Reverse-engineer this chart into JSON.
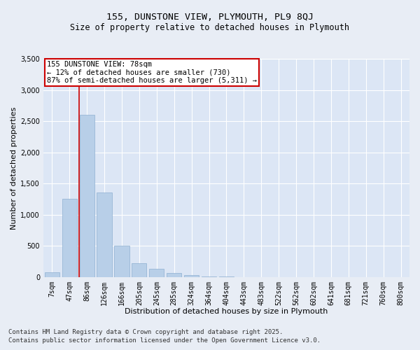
{
  "title_line1": "155, DUNSTONE VIEW, PLYMOUTH, PL9 8QJ",
  "title_line2": "Size of property relative to detached houses in Plymouth",
  "xlabel": "Distribution of detached houses by size in Plymouth",
  "ylabel": "Number of detached properties",
  "categories": [
    "7sqm",
    "47sqm",
    "86sqm",
    "126sqm",
    "166sqm",
    "205sqm",
    "245sqm",
    "285sqm",
    "324sqm",
    "364sqm",
    "404sqm",
    "443sqm",
    "483sqm",
    "522sqm",
    "562sqm",
    "602sqm",
    "641sqm",
    "681sqm",
    "721sqm",
    "760sqm",
    "800sqm"
  ],
  "values": [
    75,
    1250,
    2600,
    1350,
    500,
    220,
    130,
    60,
    25,
    8,
    3,
    1,
    1,
    0,
    0,
    0,
    0,
    0,
    0,
    0,
    0
  ],
  "bar_color": "#b8cfe8",
  "bar_edge_color": "#8eb0d0",
  "vline_color": "#cc0000",
  "vline_pos": 1.57,
  "annotation_text": "155 DUNSTONE VIEW: 78sqm\n← 12% of detached houses are smaller (730)\n87% of semi-detached houses are larger (5,311) →",
  "box_edge_color": "#cc0000",
  "ylim": [
    0,
    3500
  ],
  "yticks": [
    0,
    500,
    1000,
    1500,
    2000,
    2500,
    3000,
    3500
  ],
  "footer_line1": "Contains HM Land Registry data © Crown copyright and database right 2025.",
  "footer_line2": "Contains public sector information licensed under the Open Government Licence v3.0.",
  "bg_color": "#e8edf5",
  "plot_bg_color": "#dce6f5",
  "grid_color": "#ffffff",
  "title_fontsize": 9.5,
  "subtitle_fontsize": 8.5,
  "axis_label_fontsize": 8,
  "tick_fontsize": 7,
  "annotation_fontsize": 7.5,
  "footer_fontsize": 6.5
}
